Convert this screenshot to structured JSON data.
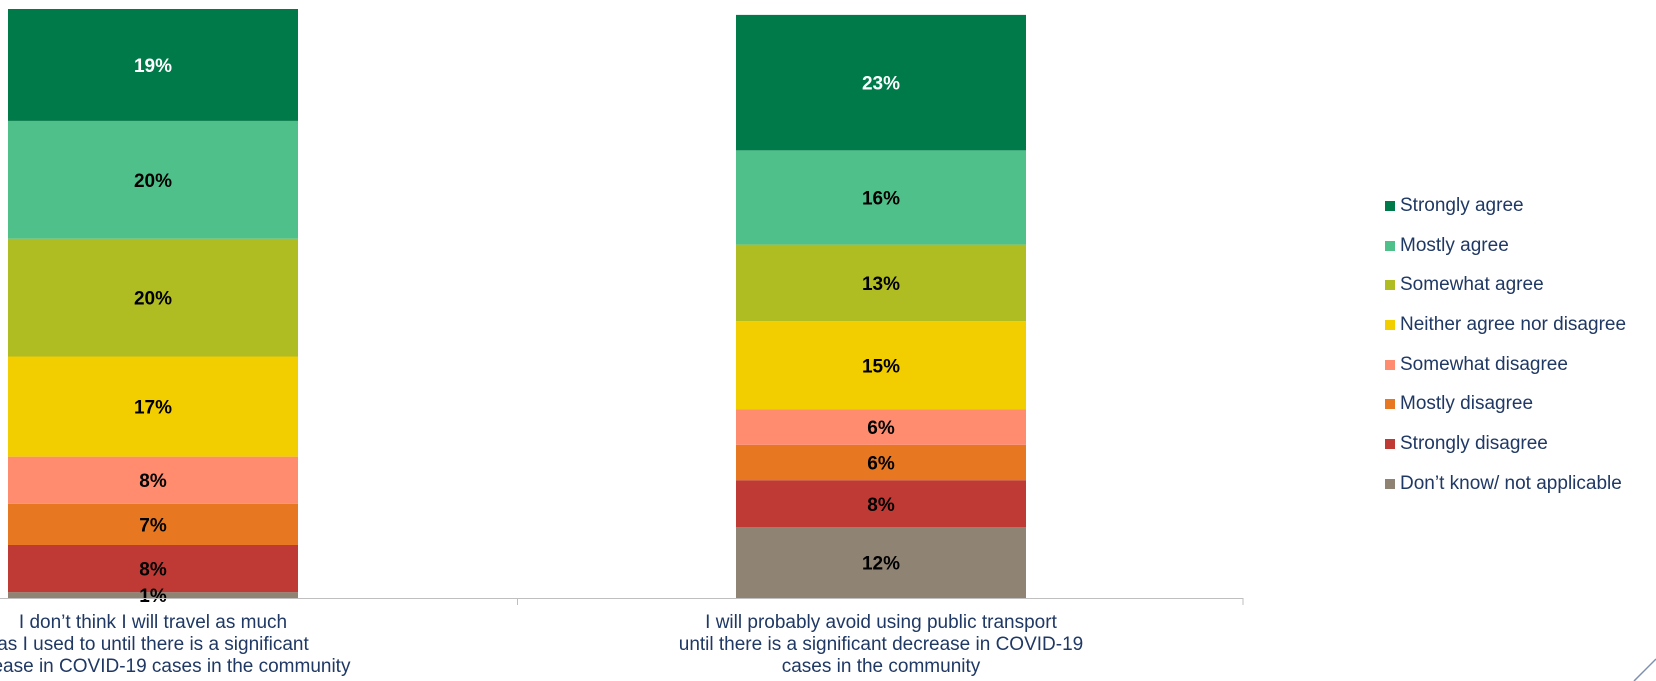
{
  "chart_data": {
    "type": "bar",
    "stacked": true,
    "orientation": "vertical",
    "categories": [
      "I don’t think I will travel as much as I used to until there is a significant decrease in COVID-19 cases in the community",
      "I will probably avoid using public transport until there is a significant decrease in COVID-19 cases in the community"
    ],
    "series": [
      {
        "name": "Don’t know/ not applicable",
        "color": "#8f8373",
        "values": [
          1,
          12
        ],
        "labels": [
          "1%",
          "12%"
        ]
      },
      {
        "name": "Strongly disagree",
        "color": "#bf3a35",
        "values": [
          8,
          8
        ],
        "labels": [
          "8%",
          "8%"
        ]
      },
      {
        "name": "Mostly disagree",
        "color": "#e87722",
        "values": [
          7,
          6
        ],
        "labels": [
          "7%",
          "6%"
        ]
      },
      {
        "name": "Somewhat disagree",
        "color": "#ff8c6e",
        "values": [
          8,
          6
        ],
        "labels": [
          "8%",
          "6%"
        ]
      },
      {
        "name": "Neither agree nor disagree",
        "color": "#f2cd00",
        "values": [
          17,
          15
        ],
        "labels": [
          "17%",
          "15%"
        ]
      },
      {
        "name": "Somewhat agree",
        "color": "#b0bd22",
        "values": [
          20,
          13
        ],
        "labels": [
          "20%",
          "13%"
        ]
      },
      {
        "name": "Mostly agree",
        "color": "#50c08a",
        "values": [
          20,
          16
        ],
        "labels": [
          "20%",
          "16%"
        ]
      },
      {
        "name": "Strongly agree",
        "color": "#007a48",
        "values": [
          19,
          23
        ],
        "labels": [
          "19%",
          "23%"
        ]
      }
    ],
    "title": "",
    "xlabel": "",
    "ylabel": "",
    "ylim": [
      0,
      100
    ],
    "grid": false,
    "legend_position": "right"
  },
  "category_labels": [
    "I don’t think I will travel as much\nas I used to until there is a significant\ndecrease in COVID-19 cases in the community",
    "I will probably avoid using public transport\nuntil there is a significant decrease in COVID-19\ncases in the community"
  ],
  "legend": [
    {
      "label": "Strongly agree",
      "color": "#007a48"
    },
    {
      "label": "Mostly agree",
      "color": "#50c08a"
    },
    {
      "label": "Somewhat agree",
      "color": "#b0bd22"
    },
    {
      "label": "Neither agree nor disagree",
      "color": "#f2cd00"
    },
    {
      "label": "Somewhat disagree",
      "color": "#ff8c6e"
    },
    {
      "label": "Mostly disagree",
      "color": "#e87722"
    },
    {
      "label": "Strongly disagree",
      "color": "#bf3a35"
    },
    {
      "label": "Don’t know/ not applicable",
      "color": "#8f8373"
    }
  ],
  "colors": {
    "axis": "#bfbfbf",
    "label_text": "#1f3864",
    "light_label": "#ffffff",
    "dark_label": "#000000"
  },
  "corner_mark_icon": "diagonal-line-icon"
}
